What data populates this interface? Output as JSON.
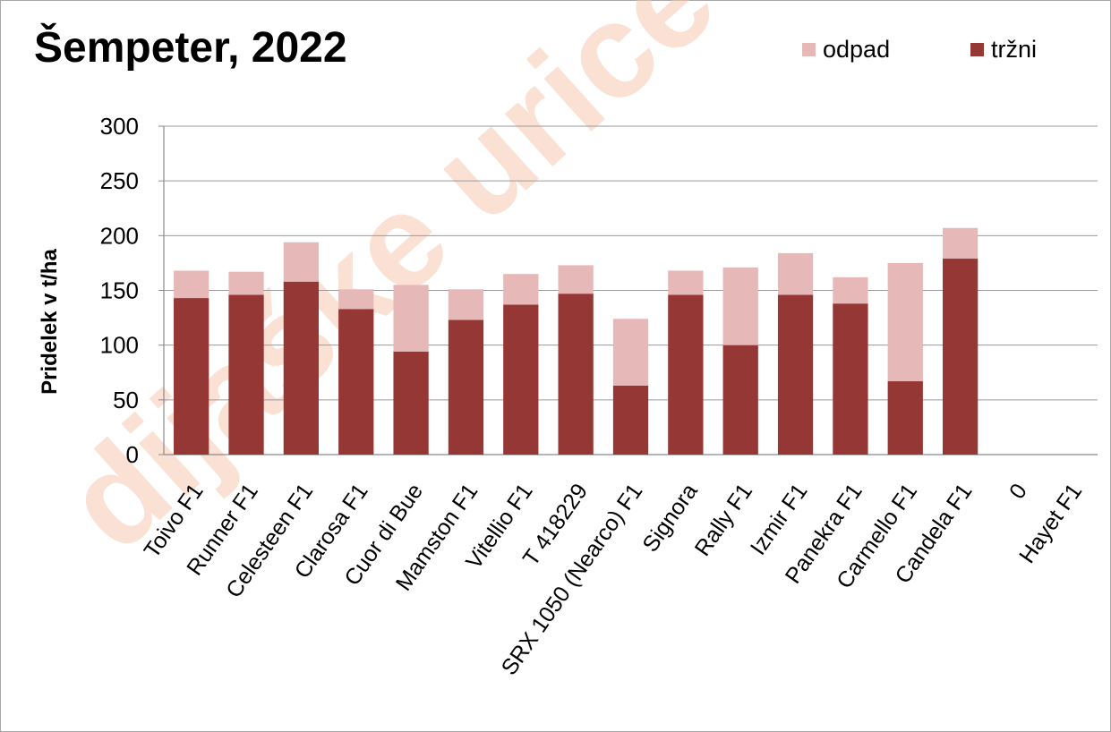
{
  "chart_data": {
    "type": "bar",
    "stacked": true,
    "title": "Šempeter, 2022",
    "xlabel": "",
    "ylabel": "Pridelek v t/ha",
    "ylim": [
      0,
      300
    ],
    "yticks": [
      0,
      50,
      100,
      150,
      200,
      250,
      300
    ],
    "grid": true,
    "legend_position": "top-right",
    "categories": [
      "Toivo F1",
      "Runner F1",
      "Celesteen F1",
      "Clarosa F1",
      "Cuor di Bue",
      "Mamston F1",
      "Vitellio F1",
      "T 418229",
      "SRX 1050 (Nearco) F1",
      "Signora",
      "Rally F1",
      "Izmir F1",
      "Panekra F1",
      "Carmello F1",
      "Candela F1",
      "0",
      "Hayet F1"
    ],
    "series": [
      {
        "name": "tržni",
        "color": "#953735",
        "values": [
          143,
          146,
          158,
          133,
          94,
          123,
          137,
          147,
          63,
          146,
          100,
          146,
          138,
          67,
          179,
          0,
          0
        ]
      },
      {
        "name": "odpad",
        "color": "#e6b9b8",
        "values": [
          25,
          21,
          36,
          18,
          61,
          28,
          28,
          26,
          61,
          22,
          71,
          38,
          24,
          108,
          28,
          0,
          0
        ]
      }
    ]
  },
  "watermark": "dijaške urice",
  "legend": [
    {
      "label": "odpad",
      "color": "#e6b9b8"
    },
    {
      "label": "tržni",
      "color": "#953735"
    }
  ]
}
